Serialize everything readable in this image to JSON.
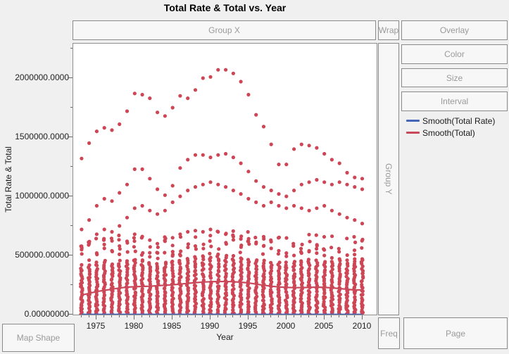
{
  "title": "Total Rate & Total vs. Year",
  "drop_zones": {
    "group_x": "Group X",
    "wrap": "Wrap",
    "overlay": "Overlay",
    "color": "Color",
    "size": "Size",
    "interval": "Interval",
    "group_y": "Group Y",
    "map_shape": "Map Shape",
    "freq": "Freq",
    "page": "Page"
  },
  "legend": [
    {
      "label": "Smooth(Total Rate)",
      "color": "#4565b8"
    },
    {
      "label": "Smooth(Total)",
      "color": "#c9485a"
    }
  ],
  "colors": {
    "background": "#f0f0f0",
    "panel_fill": "#f7f7f7",
    "panel_border": "#8a8a8a",
    "plot_border": "#8f8f8f",
    "point": "#ce4555",
    "zone_text": "#9a9a9a",
    "axis_text": "#1f1f1f"
  },
  "chart_data": {
    "type": "scatter",
    "title": "Total Rate & Total vs. Year",
    "xlabel": "Year",
    "ylabel": "Total Rate & Total",
    "xlim": [
      1971.9,
      2011.9
    ],
    "ylim_millions": [
      0,
      2.29
    ],
    "value_scale": 1000000,
    "year_range": [
      1973,
      2010
    ],
    "x_ticks": [
      1975,
      1980,
      1985,
      1990,
      1995,
      2000,
      2005,
      2010
    ],
    "y_ticks": [
      {
        "value": 0.0,
        "label": "0.00000000"
      },
      {
        "value": 0.5,
        "label": "500000.00000"
      },
      {
        "value": 1.0,
        "label": "1000000.0000"
      },
      {
        "value": 1.5,
        "label": "1500000.0000"
      },
      {
        "value": 2.0,
        "label": "2000000.0000"
      }
    ],
    "point_color": "#ce4555",
    "upper_series": [
      {
        "name": "trail-1",
        "values_millions": [
          1.32,
          1.45,
          1.55,
          1.58,
          1.56,
          1.61,
          1.72,
          1.87,
          1.86,
          1.83,
          1.71,
          1.68,
          1.75,
          1.85,
          1.83,
          1.9,
          2.0,
          2.01,
          2.07,
          2.07,
          2.04,
          1.97,
          1.86,
          1.69,
          1.59,
          1.44,
          1.27,
          1.27,
          1.4,
          1.44,
          1.43,
          1.41,
          1.36,
          1.31,
          1.28,
          1.2,
          1.16,
          1.15
        ]
      },
      {
        "name": "trail-2",
        "values_millions": [
          0.72,
          0.8,
          0.92,
          0.98,
          0.96,
          1.03,
          1.1,
          1.23,
          1.23,
          1.15,
          1.06,
          1.01,
          1.09,
          1.24,
          1.31,
          1.35,
          1.35,
          1.33,
          1.35,
          1.36,
          1.33,
          1.28,
          1.21,
          1.13,
          1.08,
          1.05,
          1.02,
          1.0,
          1.05,
          1.1,
          1.12,
          1.14,
          1.12,
          1.1,
          1.12,
          1.1,
          1.08,
          1.06
        ]
      },
      {
        "name": "trail-3",
        "values_millions": [
          0.55,
          0.6,
          0.68,
          0.72,
          0.7,
          0.75,
          0.82,
          0.9,
          0.92,
          0.88,
          0.85,
          0.88,
          0.95,
          1.0,
          1.05,
          1.08,
          1.1,
          1.12,
          1.1,
          1.08,
          1.05,
          1.02,
          0.98,
          0.95,
          0.92,
          0.95,
          0.92,
          0.9,
          0.92,
          0.9,
          0.88,
          0.9,
          0.92,
          0.88,
          0.85,
          0.82,
          0.8,
          0.77
        ]
      },
      {
        "name": "trail-4",
        "values_millions": [
          0.42,
          0.46,
          0.52,
          0.56,
          0.54,
          0.58,
          0.62,
          0.68,
          0.66,
          0.63,
          0.6,
          0.62,
          0.65,
          0.68,
          0.7,
          0.71,
          0.7,
          0.72,
          0.7,
          0.68,
          0.66,
          0.64,
          0.62,
          0.6,
          0.58,
          0.56,
          0.54,
          0.52,
          0.5,
          0.52,
          0.54,
          0.52,
          0.5,
          0.48,
          0.47,
          0.46,
          0.47,
          0.47
        ]
      }
    ],
    "dense_columns": {
      "points_per_year": 30,
      "max_millions": [
        0.4,
        0.42,
        0.45,
        0.46,
        0.44,
        0.46,
        0.47,
        0.48,
        0.47,
        0.45,
        0.44,
        0.45,
        0.46,
        0.47,
        0.48,
        0.5,
        0.51,
        0.52,
        0.52,
        0.51,
        0.5,
        0.49,
        0.48,
        0.47,
        0.46,
        0.45,
        0.45,
        0.45,
        0.46,
        0.46,
        0.47,
        0.46,
        0.46,
        0.46,
        0.46,
        0.45,
        0.46,
        0.47
      ],
      "extra_scatter_per_year": [
        2,
        4
      ]
    },
    "smoothers": [
      {
        "name": "Smooth(Total Rate)",
        "color": "#4565b8",
        "constant_millions": 0.0015
      },
      {
        "name": "Smooth(Total)",
        "color": "#c9485a",
        "values_millions": [
          0.165,
          0.18,
          0.195,
          0.205,
          0.215,
          0.225,
          0.232,
          0.236,
          0.238,
          0.24,
          0.244,
          0.248,
          0.252,
          0.258,
          0.264,
          0.27,
          0.275,
          0.278,
          0.28,
          0.28,
          0.278,
          0.274,
          0.268,
          0.258,
          0.248,
          0.24,
          0.234,
          0.23,
          0.228,
          0.228,
          0.23,
          0.232,
          0.23,
          0.226,
          0.22,
          0.214,
          0.208,
          0.21
        ]
      }
    ],
    "legend_position": "right",
    "grid": false
  }
}
